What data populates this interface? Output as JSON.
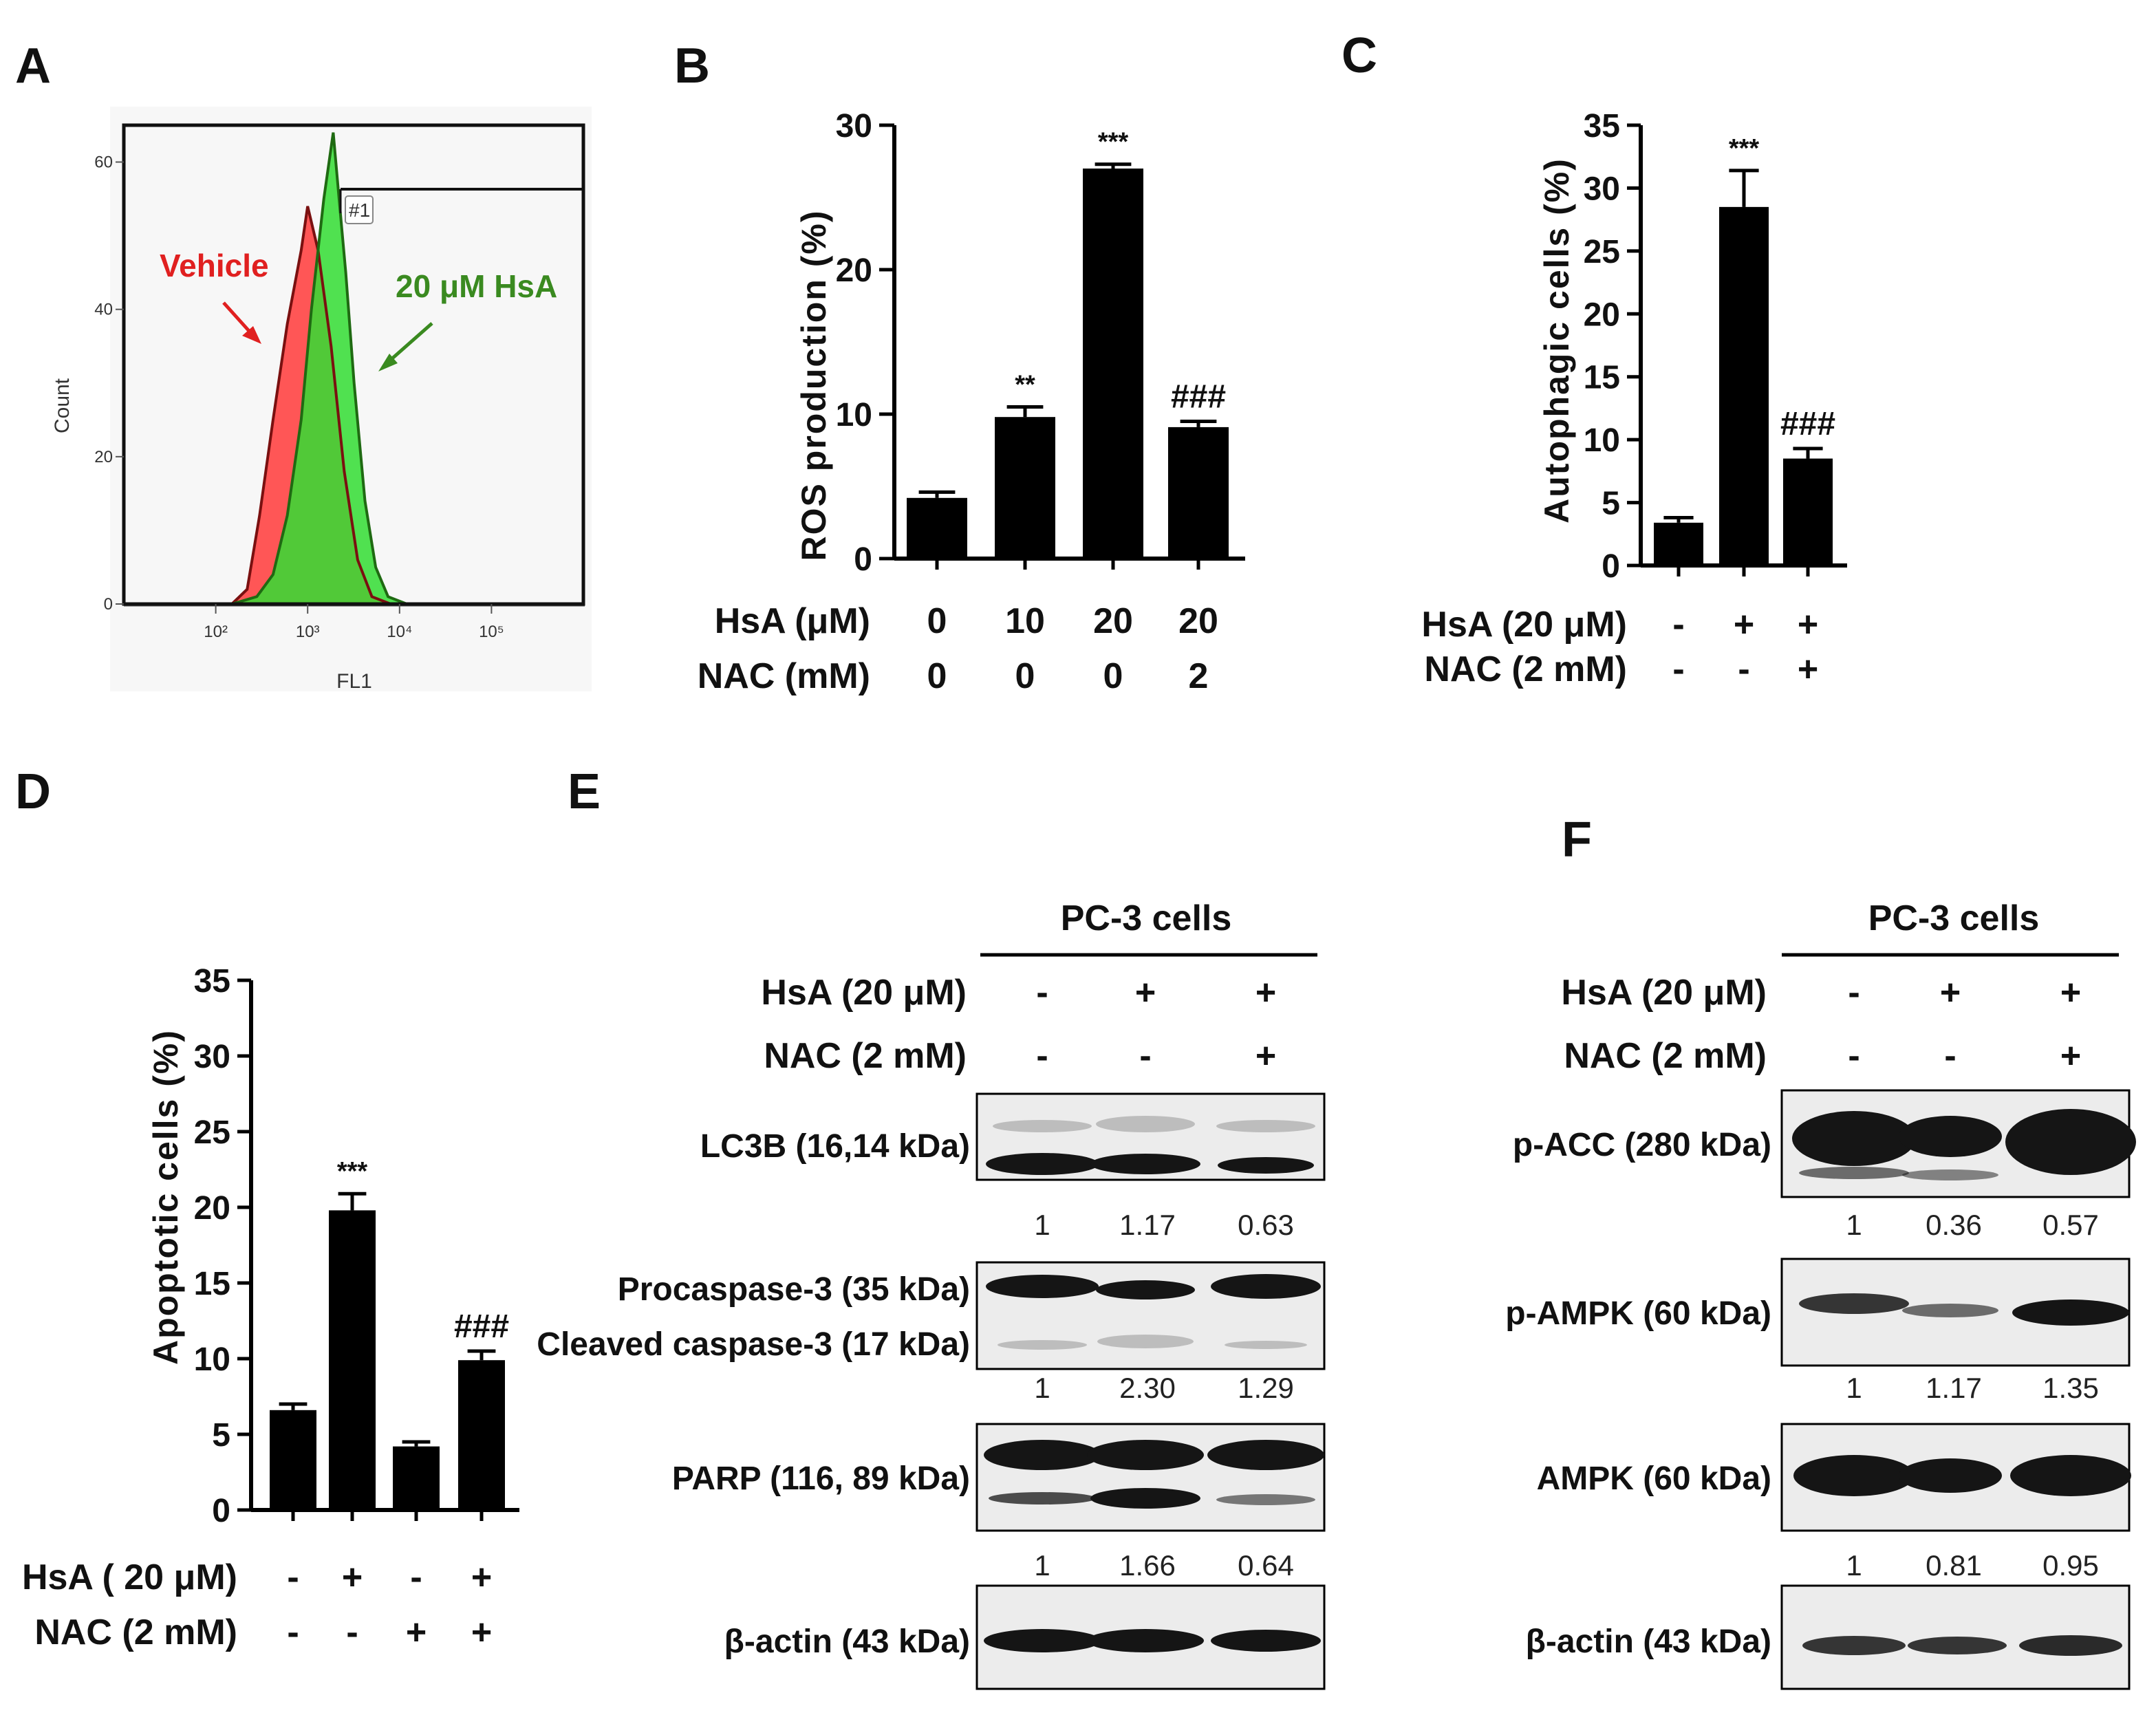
{
  "panel_letters": {
    "A": "A",
    "B": "B",
    "C": "C",
    "D": "D",
    "E": "E",
    "F": "F"
  },
  "colors": {
    "vehicle": "#ff4444",
    "hsa": "#33dd33",
    "bar": "#000000",
    "vehicle_label": "#e02020",
    "hsa_label": "#3a8a20"
  },
  "chart_data": [
    {
      "panel": "A",
      "type": "area",
      "title": "",
      "xlabel": "FL1",
      "ylabel": "Count",
      "x_scale": "log",
      "xlim": [
        10,
        1000000
      ],
      "ylim": [
        0,
        65
      ],
      "x_ticks": [
        "10²",
        "10³",
        "10⁴",
        "10⁵"
      ],
      "y_ticks": [
        "0",
        "20",
        "40",
        "60"
      ],
      "gate_label": "#1",
      "series": [
        {
          "name": "Vehicle",
          "color": "#ff4444",
          "x": [
            30,
            150,
            220,
            300,
            420,
            600,
            850,
            1000,
            1300,
            1800,
            2500,
            3500,
            5000,
            8000,
            15000,
            30000,
            300000
          ],
          "y": [
            0,
            0,
            2,
            12,
            25,
            38,
            48,
            54,
            48,
            35,
            18,
            6,
            1,
            0,
            0,
            0,
            0
          ]
        },
        {
          "name": "20 μM HsA",
          "color": "#33dd33",
          "x": [
            30,
            150,
            280,
            420,
            600,
            850,
            1100,
            1500,
            1900,
            2200,
            2600,
            3200,
            4200,
            5500,
            7500,
            12000,
            300000
          ],
          "y": [
            0,
            0,
            1,
            4,
            12,
            25,
            40,
            55,
            64,
            55,
            45,
            30,
            14,
            5,
            1,
            0,
            0
          ]
        }
      ],
      "annotations": [
        "Vehicle",
        "20 μM HsA"
      ]
    },
    {
      "panel": "B",
      "type": "bar",
      "ylabel": "ROS production  (%)",
      "ylim": [
        0,
        30
      ],
      "y_ticks": [
        0,
        10,
        20,
        30
      ],
      "values": [
        4.2,
        9.8,
        27.0,
        9.1
      ],
      "errors": [
        0.4,
        0.7,
        0.3,
        0.4
      ],
      "significance": [
        "",
        "**",
        "***",
        "###"
      ],
      "conditions": [
        {
          "label": "HsA (μM)",
          "values": [
            "0",
            "10",
            "20",
            "20"
          ]
        },
        {
          "label": "NAC (mM)",
          "values": [
            "0",
            "0",
            "0",
            "2"
          ]
        }
      ]
    },
    {
      "panel": "C",
      "type": "bar",
      "ylabel": "Autophagic  cells  (%)",
      "ylim": [
        0,
        35
      ],
      "y_ticks": [
        0,
        5,
        10,
        15,
        20,
        25,
        30,
        35
      ],
      "values": [
        3.4,
        28.5,
        8.5
      ],
      "errors": [
        0.4,
        2.9,
        0.8
      ],
      "significance": [
        "",
        "***",
        "###"
      ],
      "conditions": [
        {
          "label": "HsA (20 μM)",
          "values": [
            "-",
            "+",
            "+"
          ]
        },
        {
          "label": "NAC (2 mM)",
          "values": [
            "-",
            "-",
            "+"
          ]
        }
      ]
    },
    {
      "panel": "D",
      "type": "bar",
      "ylabel": "Apoptotic  cells  (%)",
      "ylim": [
        0,
        35
      ],
      "y_ticks": [
        0,
        5,
        10,
        15,
        20,
        25,
        30,
        35
      ],
      "values": [
        6.6,
        19.8,
        4.2,
        9.9
      ],
      "errors": [
        0.4,
        1.1,
        0.3,
        0.6
      ],
      "significance": [
        "",
        "***",
        "",
        "###"
      ],
      "conditions": [
        {
          "label": "HsA ( 20 μM)",
          "values": [
            "-",
            "+",
            "-",
            "+"
          ]
        },
        {
          "label": "NAC (2 mM)",
          "values": [
            "-",
            "-",
            "+",
            "+"
          ]
        }
      ]
    },
    {
      "panel": "E",
      "type": "table",
      "header": "PC-3 cells",
      "conditions": [
        {
          "label": "HsA (20 μM)",
          "values": [
            "-",
            "+",
            "+"
          ]
        },
        {
          "label": "NAC (2 mM)",
          "values": [
            "-",
            "-",
            "+"
          ]
        }
      ],
      "blots": [
        {
          "labels": [
            "LC3B (16,14 kDa)"
          ],
          "quant": [
            "1",
            "1.17",
            "0.63"
          ]
        },
        {
          "labels": [
            "Procaspase-3 (35 kDa)",
            "Cleaved caspase-3 (17 kDa)"
          ],
          "quant": [
            "1",
            "2.30",
            "1.29"
          ]
        },
        {
          "labels": [
            "PARP (116, 89 kDa)"
          ],
          "quant": [
            "1",
            "1.66",
            "0.64"
          ]
        },
        {
          "labels": [
            "β-actin (43 kDa)"
          ],
          "quant": []
        }
      ]
    },
    {
      "panel": "F",
      "type": "table",
      "header": "PC-3 cells",
      "conditions": [
        {
          "label": "HsA (20 μM)",
          "values": [
            "-",
            "+",
            "+"
          ]
        },
        {
          "label": "NAC (2 mM)",
          "values": [
            "-",
            "-",
            "+"
          ]
        }
      ],
      "blots": [
        {
          "labels": [
            "p-ACC (280 kDa)"
          ],
          "quant": [
            "1",
            "0.36",
            "0.57"
          ]
        },
        {
          "labels": [
            "p-AMPK (60 kDa)"
          ],
          "quant": [
            "1",
            "1.17",
            "1.35"
          ]
        },
        {
          "labels": [
            "AMPK (60 kDa)"
          ],
          "quant": [
            "1",
            "0.81",
            "0.95"
          ]
        },
        {
          "labels": [
            "β-actin (43 kDa)"
          ],
          "quant": []
        }
      ]
    }
  ]
}
